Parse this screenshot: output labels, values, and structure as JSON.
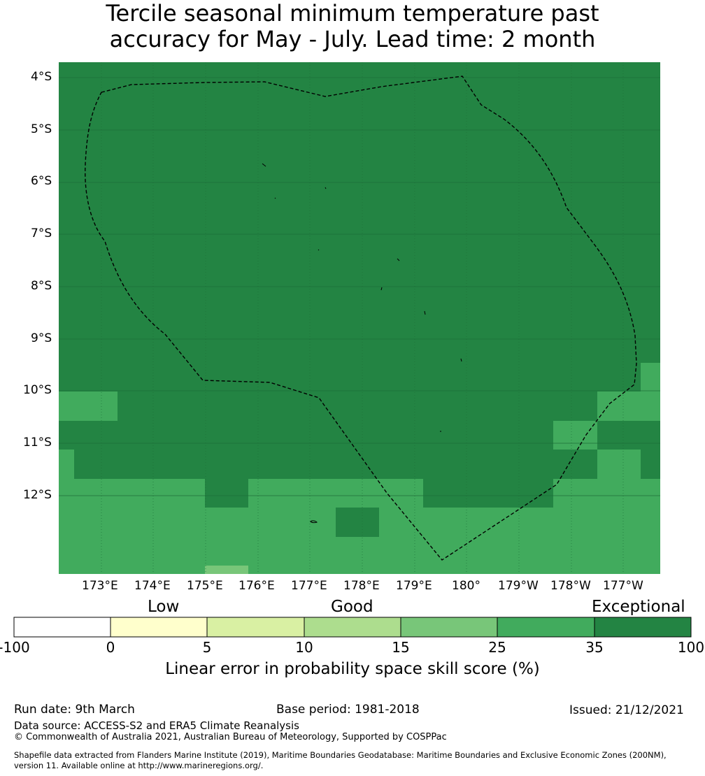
{
  "title_line1": "Tercile seasonal minimum temperature past",
  "title_line2": "accuracy for May - July. Lead time: 2 month",
  "map": {
    "lat_labels": [
      "4°S",
      "5°S",
      "6°S",
      "7°S",
      "8°S",
      "9°S",
      "10°S",
      "11°S",
      "12°S"
    ],
    "lon_labels": [
      "173°E",
      "174°E",
      "175°E",
      "176°E",
      "177°E",
      "178°E",
      "179°E",
      "180°",
      "179°W",
      "178°W",
      "177°W"
    ],
    "region_outline": "EEZ boundary (dashed)",
    "colors": {
      "c0": "#ffffff",
      "c1": "#ffffcc",
      "c2": "#d9f0a3",
      "c3": "#addd8e",
      "c4": "#78c679",
      "c5": "#41ab5d",
      "c6": "#238443"
    }
  },
  "colorbar": {
    "categories": [
      "Low",
      "Good",
      "Exceptional"
    ],
    "ticks": [
      "-100",
      "0",
      "5",
      "10",
      "15",
      "25",
      "35",
      "100"
    ],
    "colors": [
      "#ffffff",
      "#ffffcc",
      "#d9f0a3",
      "#addd8e",
      "#78c679",
      "#41ab5d",
      "#238443"
    ],
    "label": "Linear error in probability space skill score (%)"
  },
  "footer": {
    "run_date": "Run date: 9th March",
    "base_period": "Base period: 1981-2018",
    "issued": "Issued: 21/12/2021",
    "data_source": "Data source: ACCESS-S2 and ERA5 Climate Reanalysis",
    "copyright": "© Commonwealth of Australia 2021, Australian Bureau of Meteorology, Supported by COSPPac",
    "shapefile_line1": "Shapefile data extracted from Flanders Marine Institute (2019), Maritime Boundaries Geodatabase: Maritime Boundaries and Exclusive Economic Zones (200NM),",
    "shapefile_line2": "version 11. Available online at http://www.marineregions.org/."
  }
}
